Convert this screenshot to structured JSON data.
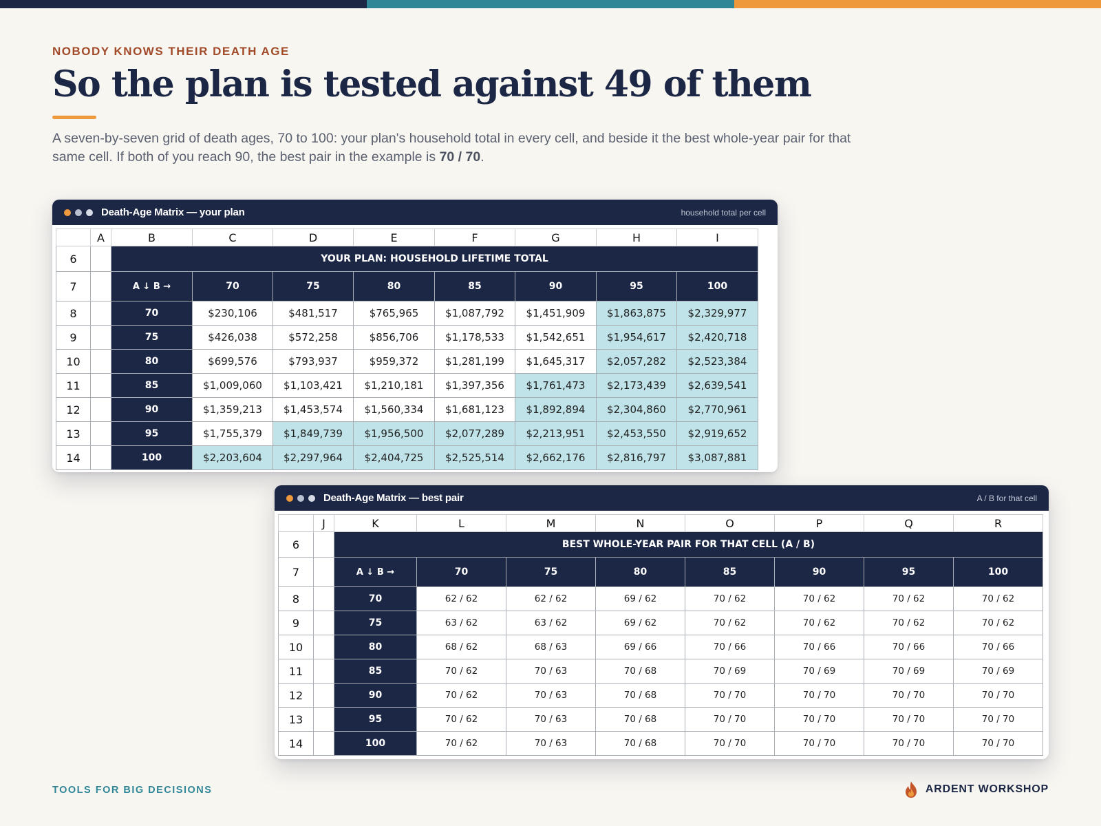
{
  "eyebrow": "NOBODY KNOWS THEIR DEATH AGE",
  "title": "So the plan is tested against 49 of them",
  "lede": {
    "text": "A seven-by-seven grid of death ages, 70 to 100: your plan's household total in every cell, and beside it the best whole-year pair for that same cell. If both of you reach 90, the best pair in the example is ",
    "emphasis": "70 / 70",
    "end": "."
  },
  "colors": {
    "navy": "#1c2645",
    "teal": "#2f8696",
    "orange": "#ee9a3c",
    "rust": "#a24b2a",
    "highlight": "#bfe3e8"
  },
  "plan_window": {
    "title": "Death-Age Matrix — your plan",
    "meta": "household total per cell",
    "columns": [
      "A",
      "B",
      "C",
      "D",
      "E",
      "F",
      "G",
      "H",
      "I"
    ],
    "row_numbers": [
      "6",
      "7",
      "8",
      "9",
      "10",
      "11",
      "12",
      "13",
      "14"
    ],
    "table_title": "YOUR PLAN: HOUSEHOLD LIFETIME TOTAL",
    "axis_label": "A ↓  B →",
    "col_ages": [
      "70",
      "75",
      "80",
      "85",
      "90",
      "95",
      "100"
    ],
    "rows": [
      {
        "age": "70",
        "cells": [
          {
            "v": "$230,106",
            "hi": false
          },
          {
            "v": "$481,517",
            "hi": false
          },
          {
            "v": "$765,965",
            "hi": false
          },
          {
            "v": "$1,087,792",
            "hi": false
          },
          {
            "v": "$1,451,909",
            "hi": false
          },
          {
            "v": "$1,863,875",
            "hi": true
          },
          {
            "v": "$2,329,977",
            "hi": true
          }
        ]
      },
      {
        "age": "75",
        "cells": [
          {
            "v": "$426,038",
            "hi": false
          },
          {
            "v": "$572,258",
            "hi": false
          },
          {
            "v": "$856,706",
            "hi": false
          },
          {
            "v": "$1,178,533",
            "hi": false
          },
          {
            "v": "$1,542,651",
            "hi": false
          },
          {
            "v": "$1,954,617",
            "hi": true
          },
          {
            "v": "$2,420,718",
            "hi": true
          }
        ]
      },
      {
        "age": "80",
        "cells": [
          {
            "v": "$699,576",
            "hi": false
          },
          {
            "v": "$793,937",
            "hi": false
          },
          {
            "v": "$959,372",
            "hi": false
          },
          {
            "v": "$1,281,199",
            "hi": false
          },
          {
            "v": "$1,645,317",
            "hi": false
          },
          {
            "v": "$2,057,282",
            "hi": true
          },
          {
            "v": "$2,523,384",
            "hi": true
          }
        ]
      },
      {
        "age": "85",
        "cells": [
          {
            "v": "$1,009,060",
            "hi": false
          },
          {
            "v": "$1,103,421",
            "hi": false
          },
          {
            "v": "$1,210,181",
            "hi": false
          },
          {
            "v": "$1,397,356",
            "hi": false
          },
          {
            "v": "$1,761,473",
            "hi": true
          },
          {
            "v": "$2,173,439",
            "hi": true
          },
          {
            "v": "$2,639,541",
            "hi": true
          }
        ]
      },
      {
        "age": "90",
        "cells": [
          {
            "v": "$1,359,213",
            "hi": false
          },
          {
            "v": "$1,453,574",
            "hi": false
          },
          {
            "v": "$1,560,334",
            "hi": false
          },
          {
            "v": "$1,681,123",
            "hi": false
          },
          {
            "v": "$1,892,894",
            "hi": true
          },
          {
            "v": "$2,304,860",
            "hi": true
          },
          {
            "v": "$2,770,961",
            "hi": true
          }
        ]
      },
      {
        "age": "95",
        "cells": [
          {
            "v": "$1,755,379",
            "hi": false
          },
          {
            "v": "$1,849,739",
            "hi": true
          },
          {
            "v": "$1,956,500",
            "hi": true
          },
          {
            "v": "$2,077,289",
            "hi": true
          },
          {
            "v": "$2,213,951",
            "hi": true
          },
          {
            "v": "$2,453,550",
            "hi": true
          },
          {
            "v": "$2,919,652",
            "hi": true
          }
        ]
      },
      {
        "age": "100",
        "cells": [
          {
            "v": "$2,203,604",
            "hi": true
          },
          {
            "v": "$2,297,964",
            "hi": true
          },
          {
            "v": "$2,404,725",
            "hi": true
          },
          {
            "v": "$2,525,514",
            "hi": true
          },
          {
            "v": "$2,662,176",
            "hi": true
          },
          {
            "v": "$2,816,797",
            "hi": true
          },
          {
            "v": "$3,087,881",
            "hi": true
          }
        ]
      }
    ]
  },
  "pair_window": {
    "title": "Death-Age Matrix — best pair",
    "meta": "A / B for that cell",
    "columns": [
      "J",
      "K",
      "L",
      "M",
      "N",
      "O",
      "P",
      "Q",
      "R"
    ],
    "row_numbers": [
      "6",
      "7",
      "8",
      "9",
      "10",
      "11",
      "12",
      "13",
      "14"
    ],
    "table_title": "BEST WHOLE-YEAR PAIR FOR THAT CELL (A / B)",
    "axis_label": "A ↓  B →",
    "col_ages": [
      "70",
      "75",
      "80",
      "85",
      "90",
      "95",
      "100"
    ],
    "rows": [
      {
        "age": "70",
        "cells": [
          "62 / 62",
          "62 / 62",
          "69 / 62",
          "70 / 62",
          "70 / 62",
          "70 / 62",
          "70 / 62"
        ]
      },
      {
        "age": "75",
        "cells": [
          "63 / 62",
          "63 / 62",
          "69 / 62",
          "70 / 62",
          "70 / 62",
          "70 / 62",
          "70 / 62"
        ]
      },
      {
        "age": "80",
        "cells": [
          "68 / 62",
          "68 / 63",
          "69 / 66",
          "70 / 66",
          "70 / 66",
          "70 / 66",
          "70 / 66"
        ]
      },
      {
        "age": "85",
        "cells": [
          "70 / 62",
          "70 / 63",
          "70 / 68",
          "70 / 69",
          "70 / 69",
          "70 / 69",
          "70 / 69"
        ]
      },
      {
        "age": "90",
        "cells": [
          "70 / 62",
          "70 / 63",
          "70 / 68",
          "70 / 70",
          "70 / 70",
          "70 / 70",
          "70 / 70"
        ]
      },
      {
        "age": "95",
        "cells": [
          "70 / 62",
          "70 / 63",
          "70 / 68",
          "70 / 70",
          "70 / 70",
          "70 / 70",
          "70 / 70"
        ]
      },
      {
        "age": "100",
        "cells": [
          "70 / 62",
          "70 / 63",
          "70 / 68",
          "70 / 70",
          "70 / 70",
          "70 / 70",
          "70 / 70"
        ]
      }
    ]
  },
  "footer": {
    "left": "TOOLS FOR BIG DECISIONS",
    "brand": "ARDENT WORKSHOP",
    "brand_icon": "flame-icon"
  }
}
